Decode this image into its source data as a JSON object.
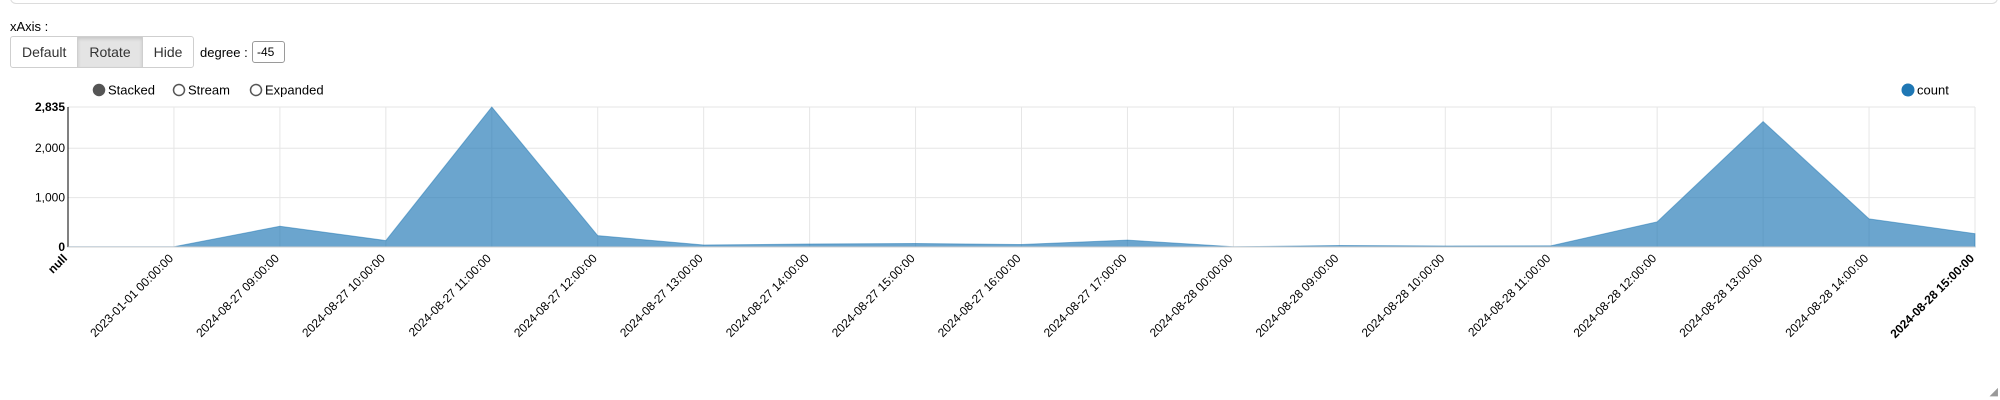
{
  "controls": {
    "xaxis_label": "xAxis :",
    "buttons": [
      "Default",
      "Rotate",
      "Hide"
    ],
    "active_button": "Rotate",
    "degree_label": "degree :",
    "degree_value": "-45"
  },
  "chart_data": {
    "type": "area",
    "title": "",
    "stack_modes": [
      "Stacked",
      "Stream",
      "Expanded"
    ],
    "selected_mode": "Stacked",
    "x_tick_rotation": -45,
    "categories": [
      "null",
      "2023-01-01 00:00:00",
      "2024-08-27 09:00:00",
      "2024-08-27 10:00:00",
      "2024-08-27 11:00:00",
      "2024-08-27 12:00:00",
      "2024-08-27 13:00:00",
      "2024-08-27 14:00:00",
      "2024-08-27 15:00:00",
      "2024-08-27 16:00:00",
      "2024-08-27 17:00:00",
      "2024-08-28 00:00:00",
      "2024-08-28 09:00:00",
      "2024-08-28 10:00:00",
      "2024-08-28 11:00:00",
      "2024-08-28 12:00:00",
      "2024-08-28 13:00:00",
      "2024-08-28 14:00:00",
      "2024-08-28 15:00:00"
    ],
    "series": [
      {
        "name": "count",
        "color": "#1f77b4",
        "values": [
          5,
          5,
          420,
          130,
          2835,
          230,
          40,
          60,
          70,
          50,
          140,
          5,
          30,
          20,
          25,
          510,
          2540,
          570,
          270
        ]
      }
    ],
    "ylim": [
      0,
      2835
    ],
    "y_ticks": [
      "0",
      "1,000",
      "2,000",
      "2,835"
    ],
    "y_tick_values": [
      0,
      1000,
      2000,
      2835
    ],
    "legend_position": "top-right",
    "grid": true
  }
}
